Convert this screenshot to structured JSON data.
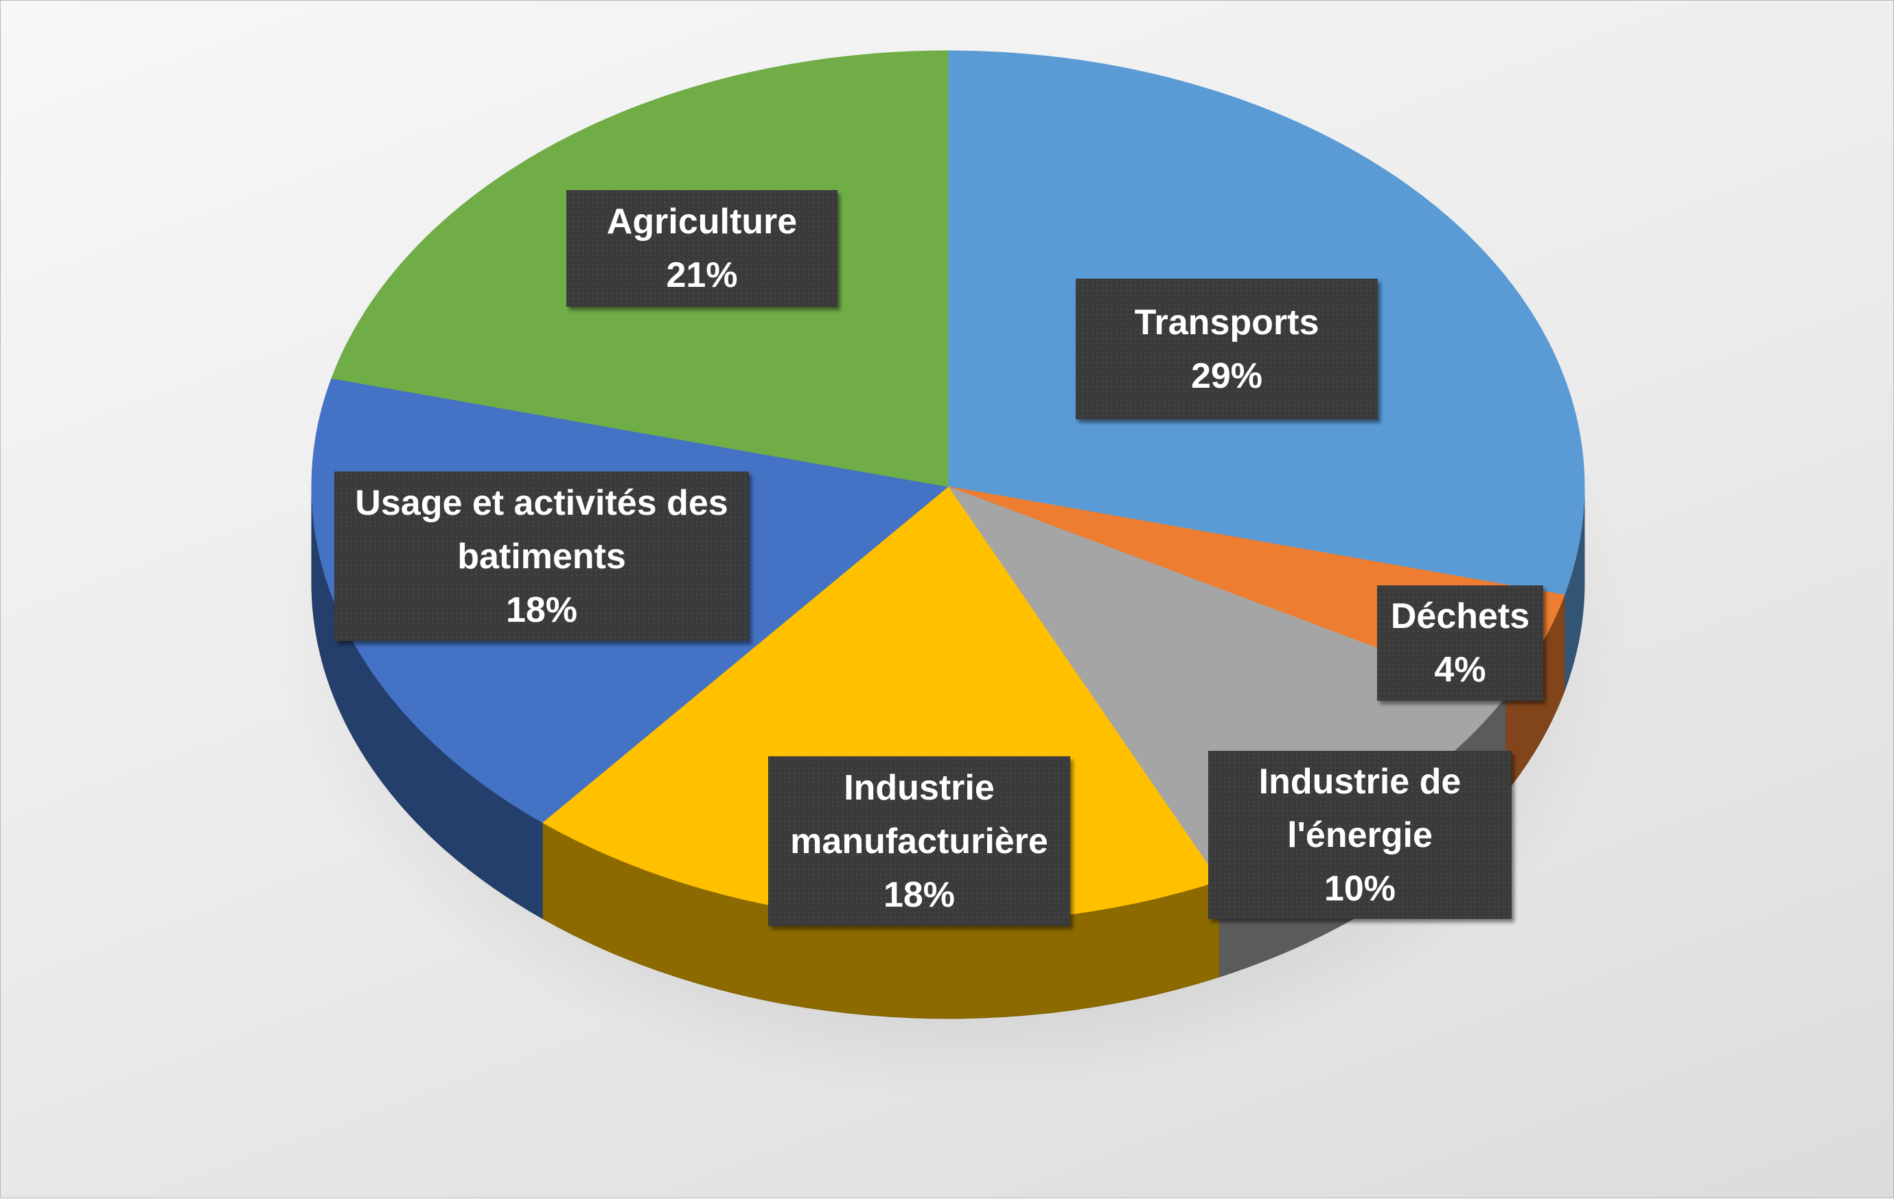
{
  "chart_data": {
    "type": "pie",
    "style": "3d",
    "title": "",
    "legend": "none",
    "slices": [
      {
        "label": "Transports",
        "value": 29,
        "display": "29%",
        "color": "#5b9bd5"
      },
      {
        "label": "Déchets",
        "value": 4,
        "display": "4%",
        "color": "#ed7d31"
      },
      {
        "label": "Industrie de l'énergie",
        "value": 10,
        "display": "10%",
        "color": "#a5a5a5"
      },
      {
        "label": "Industrie manufacturière",
        "value": 18,
        "display": "18%",
        "color": "#ffc000"
      },
      {
        "label": "Usage et activités des batiments",
        "value": 18,
        "display": "18%",
        "color": "#4472c4"
      },
      {
        "label": "Agriculture",
        "value": 21,
        "display": "21%",
        "color": "#70ad47"
      }
    ],
    "labels": [
      {
        "lines": [
          "Transports"
        ],
        "pct": "29%"
      },
      {
        "lines": [
          "Déchets"
        ],
        "pct": "4%"
      },
      {
        "lines": [
          "Industrie de",
          "l'énergie"
        ],
        "pct": "10%"
      },
      {
        "lines": [
          "Industrie",
          "manufacturière"
        ],
        "pct": "18%"
      },
      {
        "lines": [
          "Usage et activités des",
          "batiments"
        ],
        "pct": "18%"
      },
      {
        "lines": [
          "Agriculture"
        ],
        "pct": "21%"
      }
    ]
  }
}
